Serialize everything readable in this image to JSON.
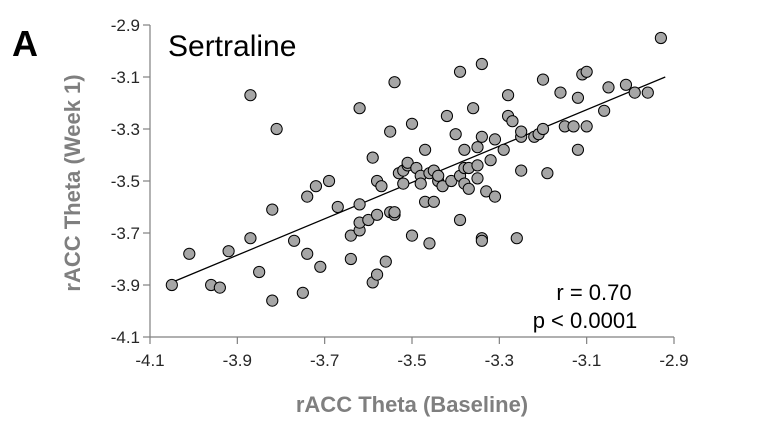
{
  "panel_label": "A",
  "chart_data": {
    "type": "scatter",
    "title": "Sertraline",
    "xlabel": "rACC Theta (Baseline)",
    "ylabel": "rACC Theta (Week 1)",
    "xlim": [
      -4.1,
      -2.9
    ],
    "ylim": [
      -4.1,
      -2.9
    ],
    "xticks": [
      -4.1,
      -3.9,
      -3.7,
      -3.5,
      -3.3,
      -3.1,
      -2.9
    ],
    "yticks": [
      -4.1,
      -3.9,
      -3.7,
      -3.5,
      -3.3,
      -3.1,
      -2.9
    ],
    "xtick_labels": [
      "-4.1",
      "-3.9",
      "-3.7",
      "-3.5",
      "-3.3",
      "-3.1",
      "-2.9"
    ],
    "ytick_labels": [
      "-4.1",
      "-3.9",
      "-3.7",
      "-3.5",
      "-3.3",
      "-3.1",
      "-2.9"
    ],
    "grid": false,
    "annotations": [
      "r = 0.70",
      "p < 0.0001"
    ],
    "fit_line": {
      "x": [
        -4.05,
        -2.92
      ],
      "y": [
        -3.89,
        -3.1
      ]
    },
    "marker_fill": "#a6a6a6",
    "marker_stroke": "#000000",
    "points": [
      [
        -4.05,
        -3.9
      ],
      [
        -4.01,
        -3.78
      ],
      [
        -3.96,
        -3.9
      ],
      [
        -3.94,
        -3.91
      ],
      [
        -3.92,
        -3.77
      ],
      [
        -3.87,
        -3.72
      ],
      [
        -3.87,
        -3.17
      ],
      [
        -3.85,
        -3.85
      ],
      [
        -3.82,
        -3.96
      ],
      [
        -3.82,
        -3.61
      ],
      [
        -3.81,
        -3.3
      ],
      [
        -3.77,
        -3.73
      ],
      [
        -3.75,
        -3.93
      ],
      [
        -3.74,
        -3.78
      ],
      [
        -3.74,
        -3.56
      ],
      [
        -3.72,
        -3.52
      ],
      [
        -3.71,
        -3.83
      ],
      [
        -3.69,
        -3.5
      ],
      [
        -3.67,
        -3.6
      ],
      [
        -3.64,
        -3.8
      ],
      [
        -3.64,
        -3.71
      ],
      [
        -3.62,
        -3.69
      ],
      [
        -3.62,
        -3.66
      ],
      [
        -3.62,
        -3.59
      ],
      [
        -3.62,
        -3.22
      ],
      [
        -3.6,
        -3.65
      ],
      [
        -3.59,
        -3.89
      ],
      [
        -3.59,
        -3.41
      ],
      [
        -3.58,
        -3.86
      ],
      [
        -3.58,
        -3.63
      ],
      [
        -3.58,
        -3.5
      ],
      [
        -3.57,
        -3.52
      ],
      [
        -3.56,
        -3.81
      ],
      [
        -3.55,
        -3.62
      ],
      [
        -3.55,
        -3.31
      ],
      [
        -3.54,
        -3.63
      ],
      [
        -3.54,
        -3.62
      ],
      [
        -3.54,
        -3.12
      ],
      [
        -3.53,
        -3.47
      ],
      [
        -3.52,
        -3.51
      ],
      [
        -3.52,
        -3.46
      ],
      [
        -3.51,
        -3.44
      ],
      [
        -3.51,
        -3.43
      ],
      [
        -3.5,
        -3.71
      ],
      [
        -3.5,
        -3.28
      ],
      [
        -3.49,
        -3.45
      ],
      [
        -3.48,
        -3.48
      ],
      [
        -3.48,
        -3.51
      ],
      [
        -3.47,
        -3.58
      ],
      [
        -3.47,
        -3.38
      ],
      [
        -3.46,
        -3.74
      ],
      [
        -3.46,
        -3.47
      ],
      [
        -3.45,
        -3.58
      ],
      [
        -3.45,
        -3.46
      ],
      [
        -3.44,
        -3.5
      ],
      [
        -3.44,
        -3.48
      ],
      [
        -3.43,
        -3.52
      ],
      [
        -3.42,
        -3.25
      ],
      [
        -3.41,
        -3.5
      ],
      [
        -3.4,
        -3.32
      ],
      [
        -3.39,
        -3.65
      ],
      [
        -3.39,
        -3.48
      ],
      [
        -3.39,
        -3.08
      ],
      [
        -3.38,
        -3.51
      ],
      [
        -3.38,
        -3.45
      ],
      [
        -3.38,
        -3.38
      ],
      [
        -3.37,
        -3.53
      ],
      [
        -3.37,
        -3.45
      ],
      [
        -3.36,
        -3.22
      ],
      [
        -3.35,
        -3.44
      ],
      [
        -3.35,
        -3.37
      ],
      [
        -3.35,
        -3.49
      ],
      [
        -3.34,
        -3.72
      ],
      [
        -3.34,
        -3.73
      ],
      [
        -3.34,
        -3.33
      ],
      [
        -3.34,
        -3.05
      ],
      [
        -3.33,
        -3.54
      ],
      [
        -3.32,
        -3.42
      ],
      [
        -3.31,
        -3.34
      ],
      [
        -3.31,
        -3.56
      ],
      [
        -3.29,
        -3.38
      ],
      [
        -3.28,
        -3.25
      ],
      [
        -3.28,
        -3.17
      ],
      [
        -3.27,
        -3.27
      ],
      [
        -3.26,
        -3.72
      ],
      [
        -3.25,
        -3.33
      ],
      [
        -3.25,
        -3.46
      ],
      [
        -3.25,
        -3.31
      ],
      [
        -3.22,
        -3.33
      ],
      [
        -3.21,
        -3.32
      ],
      [
        -3.2,
        -3.11
      ],
      [
        -3.2,
        -3.3
      ],
      [
        -3.19,
        -3.47
      ],
      [
        -3.16,
        -3.16
      ],
      [
        -3.15,
        -3.29
      ],
      [
        -3.13,
        -3.29
      ],
      [
        -3.12,
        -3.38
      ],
      [
        -3.12,
        -3.18
      ],
      [
        -3.11,
        -3.09
      ],
      [
        -3.1,
        -3.08
      ],
      [
        -3.1,
        -3.29
      ],
      [
        -3.06,
        -3.23
      ],
      [
        -3.05,
        -3.14
      ],
      [
        -3.01,
        -3.13
      ],
      [
        -2.99,
        -3.16
      ],
      [
        -2.96,
        -3.16
      ],
      [
        -2.93,
        -2.95
      ]
    ]
  }
}
